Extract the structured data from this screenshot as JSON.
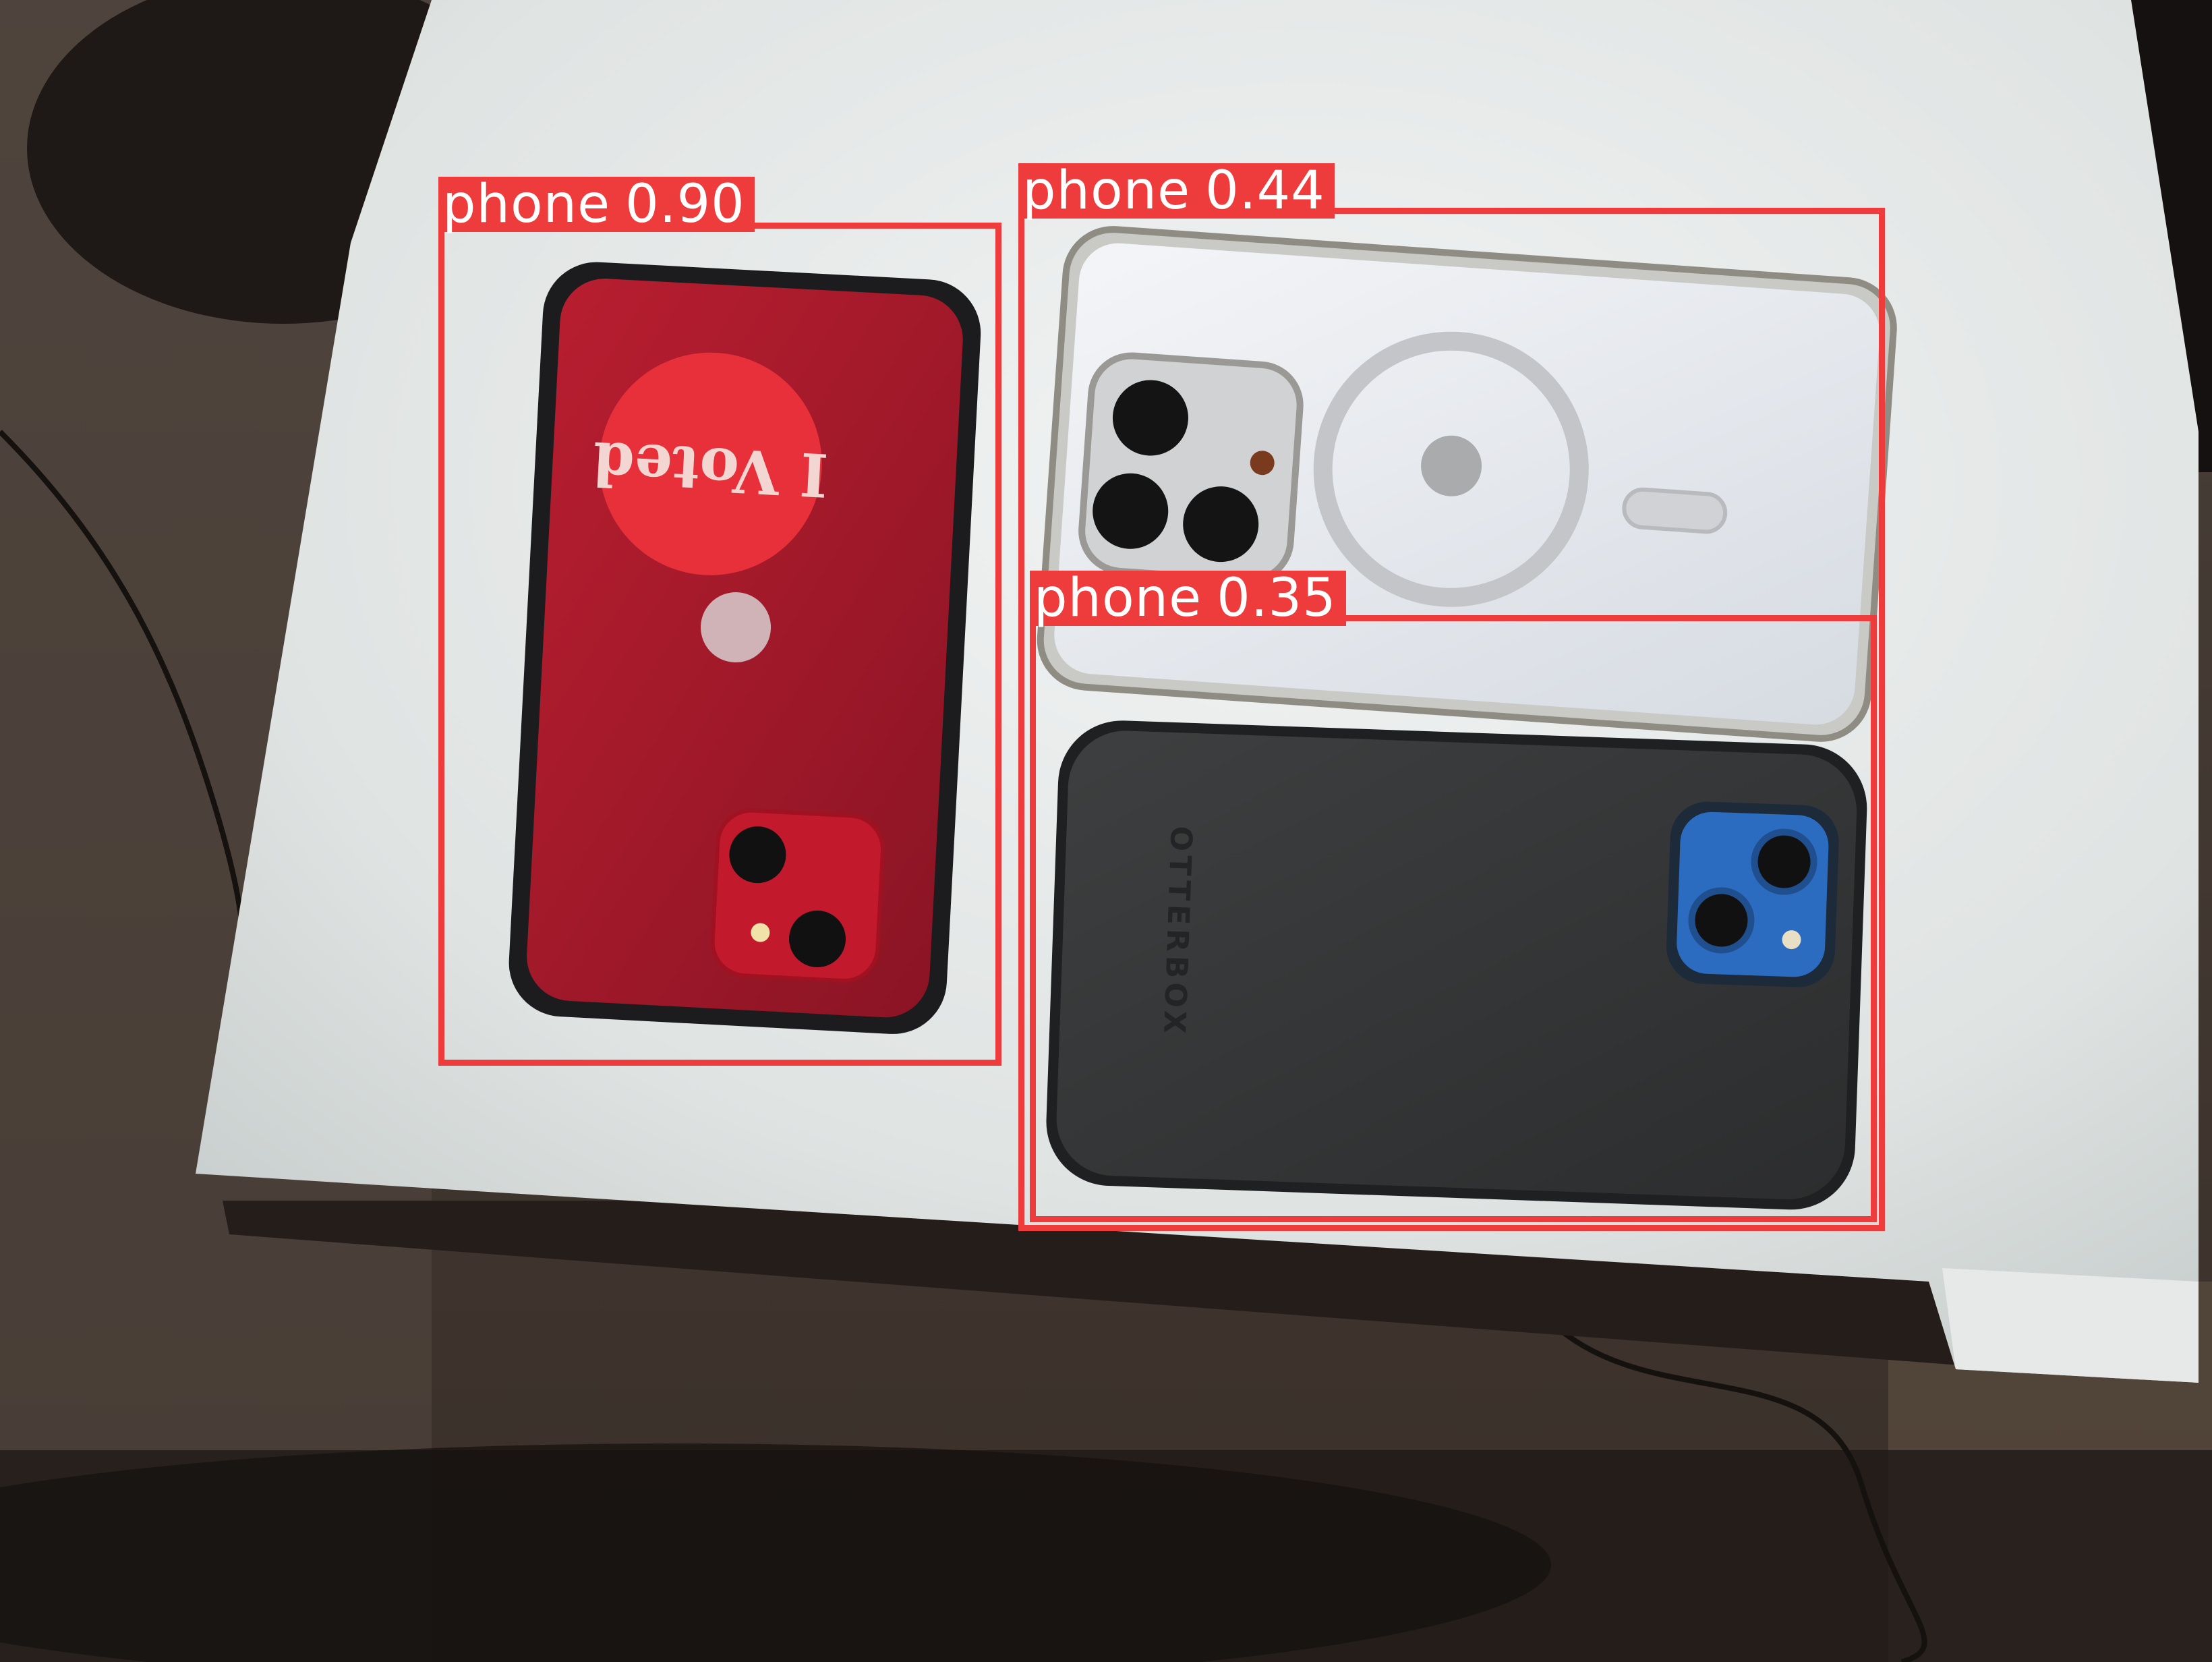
{
  "sticker_text": "I Voted",
  "case_brand": "OTTERBOX",
  "detections": [
    {
      "label": "phone",
      "confidence": "0.90",
      "color": "#ee3b3b"
    },
    {
      "label": "phone",
      "confidence": "0.44",
      "color": "#ee3b3b"
    },
    {
      "label": "phone",
      "confidence": "0.35",
      "color": "#ee3b3b"
    }
  ]
}
